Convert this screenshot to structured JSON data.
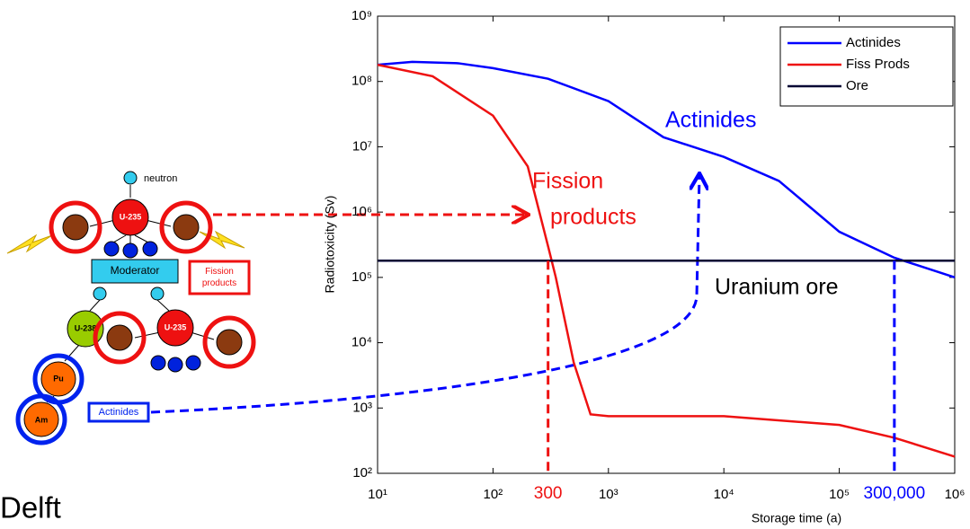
{
  "chart_data": {
    "type": "line",
    "xlabel": "Storage time (a)",
    "ylabel": "Radiotoxicity (Sv)",
    "xscale": "log",
    "yscale": "log",
    "xlim": [
      10,
      1000000
    ],
    "ylim": [
      100,
      1000000000
    ],
    "xticks": [
      {
        "value": 10,
        "label": "10¹"
      },
      {
        "value": 100,
        "label": "10²"
      },
      {
        "value": 1000,
        "label": "10³"
      },
      {
        "value": 10000,
        "label": "10⁴"
      },
      {
        "value": 100000,
        "label": "10⁵"
      },
      {
        "value": 1000000,
        "label": "10⁶"
      }
    ],
    "yticks": [
      {
        "value": 100,
        "label": "10²"
      },
      {
        "value": 1000,
        "label": "10³"
      },
      {
        "value": 10000,
        "label": "10⁴"
      },
      {
        "value": 100000,
        "label": "10⁵"
      },
      {
        "value": 1000000,
        "label": "10⁶"
      },
      {
        "value": 10000000,
        "label": "10⁷"
      },
      {
        "value": 100000000,
        "label": "10⁸"
      },
      {
        "value": 1000000000,
        "label": "10⁹"
      }
    ],
    "legend": "top-right",
    "series": [
      {
        "name": "Actinides",
        "color": "#0000ff",
        "x": [
          10,
          20,
          50,
          100,
          300,
          1000,
          3000,
          10000,
          30000,
          100000,
          300000,
          1000000
        ],
        "values": [
          180000000,
          200000000,
          190000000,
          160000000,
          110000000,
          50000000,
          14000000,
          7000000,
          3000000,
          500000,
          200000,
          100000
        ]
      },
      {
        "name": "Fiss Prods",
        "color": "#ee1111",
        "x": [
          10,
          30,
          100,
          200,
          300,
          350,
          500,
          700,
          1000,
          10000,
          100000,
          300000,
          1000000
        ],
        "values": [
          180000000,
          120000000,
          30000000,
          5000000,
          300000,
          100000,
          5000,
          800,
          750,
          750,
          550,
          350,
          180
        ]
      },
      {
        "name": "Ore",
        "color": "#000033",
        "x": [
          10,
          1000000
        ],
        "values": [
          180000,
          180000
        ]
      }
    ],
    "annotations": [
      {
        "text": "Actinides",
        "color": "#0000ff"
      },
      {
        "text": "Fission",
        "color": "#ee1111"
      },
      {
        "text": "products",
        "color": "#ee1111"
      },
      {
        "text": "Uranium ore",
        "color": "#000000"
      }
    ],
    "xmarkers": [
      {
        "value": 300,
        "label": "300",
        "color": "#ee1111"
      },
      {
        "value": 300000,
        "label": "300,000",
        "color": "#0000ff"
      }
    ]
  },
  "diagram": {
    "neutron": "neutron",
    "u235_top": "U-235",
    "moderator": "Moderator",
    "fission_products": "Fission products",
    "u238": "U-238",
    "u235_bottom": "U-235",
    "pu": "Pu",
    "am": "Am",
    "actinides": "Actinides"
  },
  "footer": "Delft"
}
